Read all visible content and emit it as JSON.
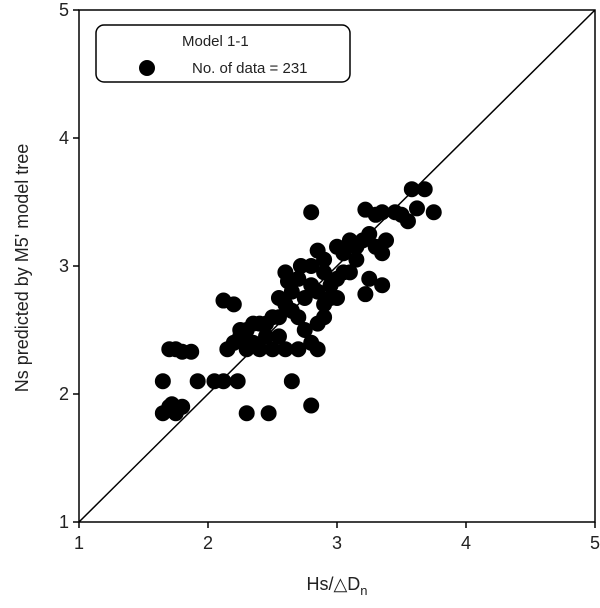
{
  "chart_data": {
    "type": "scatter",
    "xlabel": {
      "main": "Hs/△D",
      "sub": "n"
    },
    "ylabel": "Ns predicted by M5' model tree",
    "legend_title": "Model 1-1",
    "xlim": [
      1,
      5
    ],
    "ylim": [
      1,
      5
    ],
    "xticks": [
      1,
      2,
      3,
      4,
      5
    ],
    "yticks": [
      1,
      2,
      3,
      4,
      5
    ],
    "series": [
      {
        "name": "No. of data = 231",
        "color": "#000000",
        "x": [
          1.65,
          1.7,
          1.75,
          1.8,
          1.72,
          1.65,
          1.7,
          1.75,
          1.8,
          1.87,
          1.92,
          2.05,
          2.12,
          2.23,
          2.12,
          2.2,
          2.15,
          2.2,
          2.25,
          2.3,
          2.35,
          2.4,
          2.45,
          2.5,
          2.55,
          2.6,
          2.65,
          2.7,
          2.75,
          2.8,
          2.85,
          2.9,
          2.95,
          3.0,
          2.3,
          2.47,
          2.8,
          2.65,
          2.8,
          2.85,
          2.9,
          3.0,
          3.05,
          3.1,
          3.15,
          3.2,
          3.25,
          3.3,
          3.35,
          3.38,
          3.22,
          3.25,
          3.35,
          3.22,
          3.3,
          3.35,
          3.45,
          3.5,
          3.55,
          3.58,
          3.68,
          3.75,
          3.62,
          2.6,
          2.62,
          2.55,
          2.5,
          2.7,
          2.75,
          2.85,
          2.9,
          2.95,
          2.8,
          2.7,
          2.6,
          2.55,
          2.45,
          2.35,
          2.3,
          2.25,
          2.4,
          2.85,
          2.72,
          2.8,
          2.9,
          3.05,
          2.65,
          3.0,
          3.1,
          3.15
        ],
        "values": [
          1.85,
          1.9,
          1.85,
          1.9,
          1.92,
          2.1,
          2.35,
          2.35,
          2.33,
          2.33,
          2.1,
          2.1,
          2.1,
          2.1,
          2.73,
          2.7,
          2.35,
          2.4,
          2.45,
          2.5,
          2.4,
          2.55,
          2.45,
          2.35,
          2.6,
          2.7,
          2.8,
          2.9,
          2.75,
          2.85,
          2.8,
          2.7,
          2.85,
          2.9,
          1.85,
          1.85,
          1.91,
          2.1,
          3.42,
          3.12,
          3.05,
          3.15,
          3.1,
          3.2,
          3.15,
          3.2,
          3.25,
          3.15,
          3.1,
          3.2,
          2.78,
          2.9,
          2.85,
          3.44,
          3.4,
          3.42,
          3.42,
          3.4,
          3.35,
          3.6,
          3.6,
          3.42,
          3.45,
          2.95,
          2.88,
          2.75,
          2.6,
          2.6,
          2.5,
          2.55,
          2.6,
          2.75,
          2.4,
          2.35,
          2.35,
          2.45,
          2.55,
          2.55,
          2.35,
          2.5,
          2.35,
          2.35,
          3.0,
          3.0,
          2.95,
          2.95,
          2.65,
          2.75,
          2.95,
          3.05
        ]
      }
    ]
  }
}
